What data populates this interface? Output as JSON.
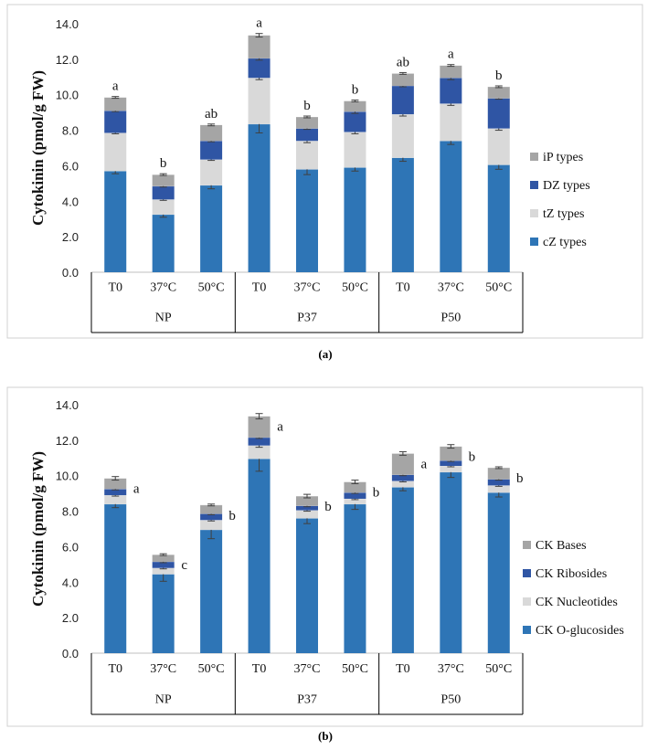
{
  "colors": {
    "cZ": "#2e75b6",
    "tZ": "#d9d9d9",
    "DZ": "#2f55a4",
    "iP": "#a5a5a5",
    "O": "#2e75b6",
    "Nuc": "#d9d9d9",
    "Rib": "#2f55a4",
    "Bases": "#a5a5a5"
  },
  "chart_data": [
    {
      "type": "bar",
      "stacked": true,
      "panel_label": "(a)",
      "ylabel": "Cytokinin (pmol/g FW)",
      "ylim": [
        0,
        14
      ],
      "yticks": [
        "0.0",
        "2.0",
        "4.0",
        "6.0",
        "8.0",
        "10.0",
        "12.0",
        "14.0"
      ],
      "categories": [
        "T0",
        "37°C",
        "50°C",
        "T0",
        "37°C",
        "50°C",
        "T0",
        "37°C",
        "50°C"
      ],
      "groups": [
        {
          "label": "NP",
          "span": 3
        },
        {
          "label": "P37",
          "span": 3
        },
        {
          "label": "P50",
          "span": 3
        }
      ],
      "legend_position": "right",
      "series": [
        {
          "name": "cZ types",
          "color_key": "cZ",
          "values": [
            5.7,
            3.25,
            4.9,
            8.35,
            5.8,
            5.9,
            6.45,
            7.4,
            6.05
          ],
          "errors": [
            0.15,
            0.15,
            0.2,
            0.5,
            0.3,
            0.2,
            0.2,
            0.2,
            0.25
          ]
        },
        {
          "name": "tZ types",
          "color_key": "tZ",
          "values": [
            2.15,
            0.85,
            1.45,
            2.6,
            1.6,
            2.0,
            2.45,
            2.1,
            2.05
          ],
          "errors": [
            0.05,
            0.05,
            0.05,
            0.1,
            0.1,
            0.1,
            0.1,
            0.1,
            0.1
          ]
        },
        {
          "name": "DZ types",
          "color_key": "DZ",
          "values": [
            1.25,
            0.75,
            1.05,
            1.1,
            0.7,
            1.15,
            1.6,
            1.45,
            1.7
          ],
          "errors": [
            0.05,
            0.05,
            0.05,
            0.1,
            0.05,
            0.1,
            0.05,
            0.1,
            0.05
          ]
        },
        {
          "name": "iP types",
          "color_key": "iP",
          "values": [
            0.75,
            0.65,
            0.9,
            1.3,
            0.65,
            0.6,
            0.7,
            0.7,
            0.65
          ],
          "errors": [
            0.05,
            0.05,
            0.05,
            0.1,
            0.05,
            0.05,
            0.05,
            0.05,
            0.05
          ]
        }
      ],
      "significance": [
        "a",
        "b",
        "ab",
        "a",
        "b",
        "b",
        "ab",
        "a",
        "b"
      ]
    },
    {
      "type": "bar",
      "stacked": true,
      "panel_label": "(b)",
      "ylabel": "Cytokinin (pmol/g FW)",
      "ylim": [
        0,
        14
      ],
      "yticks": [
        "0.0",
        "2.0",
        "4.0",
        "6.0",
        "8.0",
        "10.0",
        "12.0",
        "14.0"
      ],
      "categories": [
        "T0",
        "37°C",
        "50°C",
        "T0",
        "37°C",
        "50°C",
        "T0",
        "37°C",
        "50°C"
      ],
      "groups": [
        {
          "label": "NP",
          "span": 3
        },
        {
          "label": "P37",
          "span": 3
        },
        {
          "label": "P50",
          "span": 3
        }
      ],
      "legend_position": "right",
      "series": [
        {
          "name": "CK O-glucosides",
          "color_key": "O",
          "values": [
            8.4,
            4.45,
            6.95,
            10.95,
            7.6,
            8.4,
            9.35,
            10.2,
            9.05
          ],
          "errors": [
            0.2,
            0.4,
            0.5,
            0.7,
            0.3,
            0.3,
            0.2,
            0.3,
            0.25
          ]
        },
        {
          "name": "CK Nucleotides",
          "color_key": "Nuc",
          "values": [
            0.5,
            0.35,
            0.55,
            0.75,
            0.45,
            0.3,
            0.35,
            0.35,
            0.4
          ],
          "errors": [
            0.05,
            0.05,
            0.05,
            0.1,
            0.05,
            0.05,
            0.05,
            0.05,
            0.05
          ]
        },
        {
          "name": "CK Ribosides",
          "color_key": "Rib",
          "values": [
            0.35,
            0.35,
            0.35,
            0.45,
            0.25,
            0.35,
            0.35,
            0.3,
            0.35
          ],
          "errors": [
            0.05,
            0.05,
            0.05,
            0.05,
            0.05,
            0.05,
            0.05,
            0.05,
            0.05
          ]
        },
        {
          "name": "CK Bases",
          "color_key": "Bases",
          "values": [
            0.6,
            0.4,
            0.5,
            1.2,
            0.55,
            0.6,
            1.2,
            0.8,
            0.65
          ],
          "errors": [
            0.1,
            0.05,
            0.05,
            0.15,
            0.1,
            0.1,
            0.1,
            0.1,
            0.05
          ]
        }
      ],
      "significance": [
        "a",
        "c",
        "b",
        "a",
        "b",
        "b",
        "a",
        "b",
        "b"
      ]
    }
  ]
}
